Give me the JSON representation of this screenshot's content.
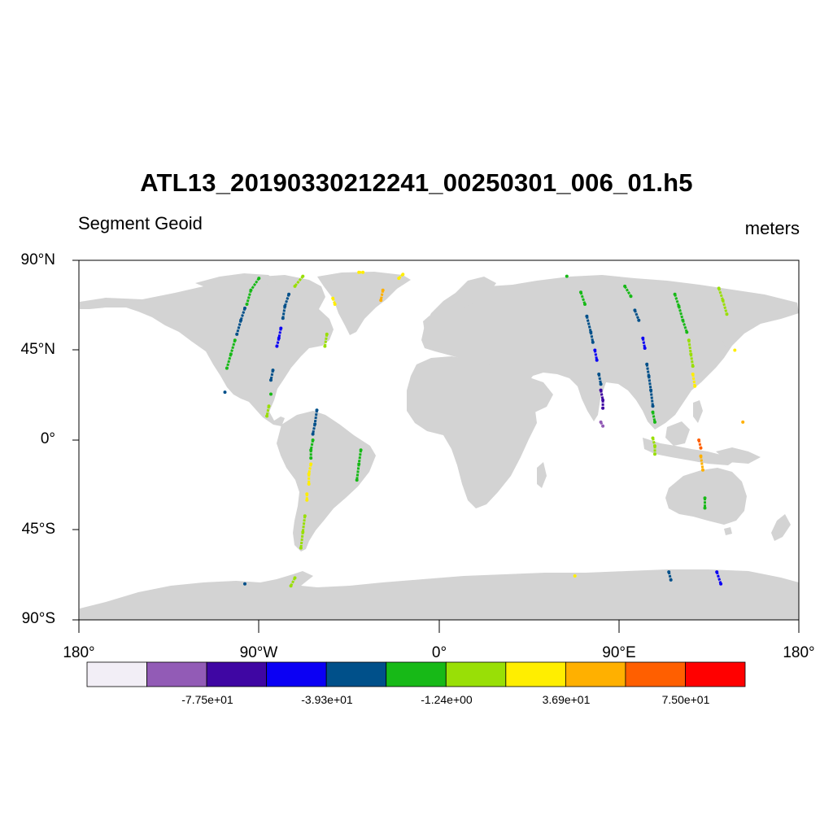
{
  "title": "ATL13_20190330212241_00250301_006_01.h5",
  "subtitle_left": "Segment Geoid",
  "subtitle_right": "meters",
  "axes": {
    "lat_labels": [
      "90°N",
      "45°N",
      "0°",
      "45°S",
      "90°S"
    ],
    "lat_values": [
      90,
      45,
      0,
      -45,
      -90
    ],
    "lon_labels": [
      "180°",
      "90°W",
      "0°",
      "90°E",
      "180°"
    ],
    "lon_values": [
      -180,
      -90,
      0,
      90,
      180
    ],
    "land_color": "#d3d3d3",
    "ocean_color": "#ffffff"
  },
  "colorbar": {
    "colors": [
      "#f2eef6",
      "#925bb6",
      "#3f06a3",
      "#0b00f4",
      "#00508a",
      "#17b917",
      "#99df06",
      "#ffee00",
      "#ffb000",
      "#ff5f00",
      "#ff0000"
    ],
    "labels": [
      "-7.75e+01",
      "-3.93e+01",
      "-1.24e+00",
      "3.69e+01",
      "7.50e+01"
    ]
  },
  "chart_data": {
    "type": "scatter",
    "title": "ATL13_20190330212241_00250301_006_01.h5",
    "xlabel": "",
    "ylabel": "",
    "xlim": [
      -180,
      180
    ],
    "ylim": [
      -90,
      90
    ],
    "xticks": [
      "180°",
      "90°W",
      "0°",
      "90°E",
      "180°"
    ],
    "yticks": [
      "90°N",
      "45°N",
      "0°",
      "45°S",
      "90°S"
    ],
    "units": "meters",
    "tracks": [
      {
        "color_index": 5,
        "points": [
          [
            -90,
            81
          ],
          [
            -94,
            75
          ],
          [
            -96,
            68
          ]
        ]
      },
      {
        "color_index": 4,
        "points": [
          [
            -97,
            66
          ],
          [
            -99,
            60
          ],
          [
            -101,
            53
          ]
        ]
      },
      {
        "color_index": 5,
        "points": [
          [
            -102,
            50
          ],
          [
            -104,
            43
          ],
          [
            -106,
            36
          ]
        ]
      },
      {
        "color_index": 4,
        "points": [
          [
            -107,
            24
          ]
        ]
      },
      {
        "color_index": 6,
        "points": [
          [
            -68,
            82
          ],
          [
            -72,
            77
          ]
        ]
      },
      {
        "color_index": 4,
        "points": [
          [
            -75,
            73
          ],
          [
            -77,
            67
          ],
          [
            -78,
            61
          ]
        ]
      },
      {
        "color_index": 3,
        "points": [
          [
            -79,
            56
          ],
          [
            -80,
            51
          ],
          [
            -81,
            47
          ]
        ]
      },
      {
        "color_index": 4,
        "points": [
          [
            -83,
            35
          ],
          [
            -84,
            30
          ]
        ]
      },
      {
        "color_index": 5,
        "points": [
          [
            -84,
            23
          ]
        ]
      },
      {
        "color_index": 6,
        "points": [
          [
            -85,
            17
          ],
          [
            -86,
            12
          ]
        ]
      },
      {
        "color_index": 4,
        "points": [
          [
            -61,
            15
          ],
          [
            -62,
            8
          ],
          [
            -63,
            3
          ]
        ]
      },
      {
        "color_index": 5,
        "points": [
          [
            -63,
            0
          ],
          [
            -64,
            -5
          ],
          [
            -64,
            -9
          ]
        ]
      },
      {
        "color_index": 7,
        "points": [
          [
            -64,
            -12
          ],
          [
            -65,
            -17
          ],
          [
            -65,
            -22
          ]
        ]
      },
      {
        "color_index": 7,
        "points": [
          [
            -66,
            -27
          ],
          [
            -66,
            -30
          ]
        ]
      },
      {
        "color_index": 6,
        "points": [
          [
            -67,
            -38
          ],
          [
            -68,
            -46
          ],
          [
            -69,
            -54
          ]
        ]
      },
      {
        "color_index": 5,
        "points": [
          [
            -39,
            -5
          ],
          [
            -40,
            -12
          ],
          [
            -41,
            -20
          ]
        ]
      },
      {
        "color_index": 6,
        "points": [
          [
            -56,
            53
          ],
          [
            -57,
            47
          ]
        ]
      },
      {
        "color_index": 7,
        "points": [
          [
            -53,
            71
          ],
          [
            -52,
            68
          ]
        ]
      },
      {
        "color_index": 7,
        "points": [
          [
            -40,
            84
          ],
          [
            -38,
            84
          ]
        ]
      },
      {
        "color_index": 8,
        "points": [
          [
            -28,
            75
          ],
          [
            -29,
            70
          ]
        ]
      },
      {
        "color_index": 7,
        "points": [
          [
            -20,
            81
          ],
          [
            -18,
            83
          ]
        ]
      },
      {
        "color_index": 5,
        "points": [
          [
            64,
            82
          ]
        ]
      },
      {
        "color_index": 5,
        "points": [
          [
            71,
            74
          ],
          [
            73,
            68
          ]
        ]
      },
      {
        "color_index": 4,
        "points": [
          [
            74,
            62
          ],
          [
            76,
            54
          ],
          [
            77,
            49
          ]
        ]
      },
      {
        "color_index": 3,
        "points": [
          [
            78,
            45
          ],
          [
            79,
            40
          ]
        ]
      },
      {
        "color_index": 4,
        "points": [
          [
            80,
            33
          ],
          [
            81,
            28
          ]
        ]
      },
      {
        "color_index": 2,
        "points": [
          [
            81,
            25
          ],
          [
            82,
            20
          ],
          [
            82,
            16
          ]
        ]
      },
      {
        "color_index": 1,
        "points": [
          [
            81,
            9
          ],
          [
            82,
            7
          ]
        ]
      },
      {
        "color_index": 5,
        "points": [
          [
            93,
            77
          ],
          [
            96,
            72
          ]
        ]
      },
      {
        "color_index": 4,
        "points": [
          [
            98,
            65
          ],
          [
            100,
            60
          ]
        ]
      },
      {
        "color_index": 3,
        "points": [
          [
            102,
            51
          ],
          [
            103,
            46
          ]
        ]
      },
      {
        "color_index": 4,
        "points": [
          [
            104,
            38
          ],
          [
            105,
            32
          ],
          [
            106,
            25
          ],
          [
            107,
            17
          ]
        ]
      },
      {
        "color_index": 5,
        "points": [
          [
            107,
            14
          ],
          [
            108,
            9
          ]
        ]
      },
      {
        "color_index": 6,
        "points": [
          [
            107,
            1
          ],
          [
            108,
            -3
          ],
          [
            108,
            -7
          ]
        ]
      },
      {
        "color_index": 5,
        "points": [
          [
            118,
            73
          ],
          [
            120,
            67
          ],
          [
            122,
            60
          ],
          [
            124,
            54
          ]
        ]
      },
      {
        "color_index": 6,
        "points": [
          [
            125,
            50
          ],
          [
            126,
            43
          ],
          [
            127,
            37
          ]
        ]
      },
      {
        "color_index": 7,
        "points": [
          [
            127,
            33
          ],
          [
            128,
            27
          ]
        ]
      },
      {
        "color_index": 9,
        "points": [
          [
            130,
            0
          ],
          [
            131,
            -4
          ]
        ]
      },
      {
        "color_index": 8,
        "points": [
          [
            131,
            -8
          ],
          [
            132,
            -15
          ]
        ]
      },
      {
        "color_index": 5,
        "points": [
          [
            133,
            -29
          ],
          [
            133,
            -34
          ]
        ]
      },
      {
        "color_index": 6,
        "points": [
          [
            140,
            76
          ],
          [
            142,
            70
          ],
          [
            144,
            63
          ]
        ]
      },
      {
        "color_index": 7,
        "points": [
          [
            148,
            45
          ]
        ]
      },
      {
        "color_index": 8,
        "points": [
          [
            152,
            9
          ]
        ]
      },
      {
        "color_index": 4,
        "points": [
          [
            -97,
            -72
          ]
        ]
      },
      {
        "color_index": 6,
        "points": [
          [
            -72,
            -69
          ],
          [
            -74,
            -73
          ]
        ]
      },
      {
        "color_index": 7,
        "points": [
          [
            68,
            -68
          ]
        ]
      },
      {
        "color_index": 4,
        "points": [
          [
            115,
            -66
          ],
          [
            116,
            -70
          ]
        ]
      },
      {
        "color_index": 3,
        "points": [
          [
            139,
            -66
          ],
          [
            141,
            -72
          ]
        ]
      }
    ]
  }
}
